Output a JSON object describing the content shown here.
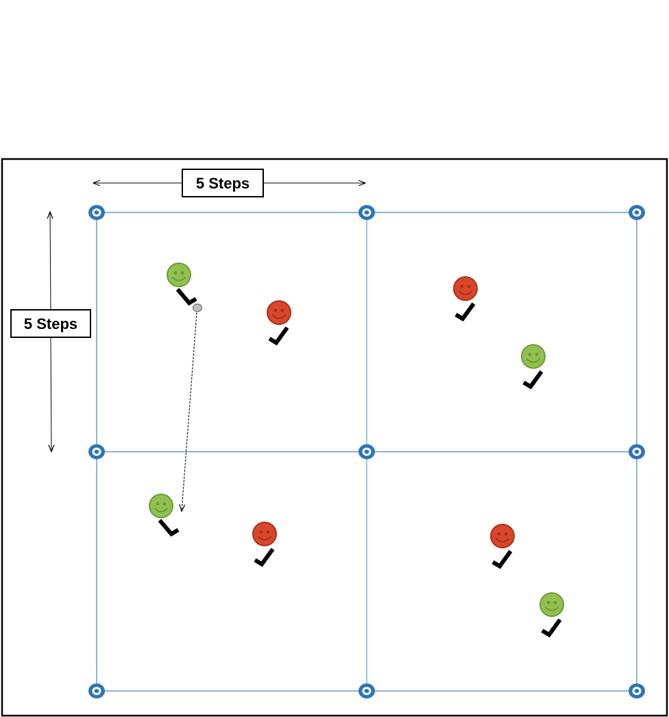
{
  "labels": {
    "horizontal_distance": "5 Steps",
    "vertical_distance": "5 Steps"
  },
  "colors": {
    "grid_line": "#4f81bd",
    "grid_line_center": "#4bacc6",
    "cone": "#2e75b6",
    "team_green": "#92c050",
    "team_red": "#d9462b",
    "stick": "#000000",
    "puck": "#bfbfbf",
    "border": "#000000"
  },
  "grid": {
    "columns": 2,
    "rows": 2
  },
  "players": [
    {
      "team": "green",
      "stick": "right"
    },
    {
      "team": "red",
      "stick": "left"
    },
    {
      "team": "red",
      "stick": "left"
    },
    {
      "team": "green",
      "stick": "left"
    },
    {
      "team": "green",
      "stick": "right"
    },
    {
      "team": "red",
      "stick": "left"
    },
    {
      "team": "red",
      "stick": "left"
    },
    {
      "team": "green",
      "stick": "left"
    }
  ],
  "puck": {
    "present": true
  },
  "pass": {
    "style": "dashed-arrow"
  },
  "icons": {
    "cone": "cone-icon",
    "player": "smiley-icon",
    "stick": "hockey-stick-icon",
    "puck": "puck-icon"
  }
}
